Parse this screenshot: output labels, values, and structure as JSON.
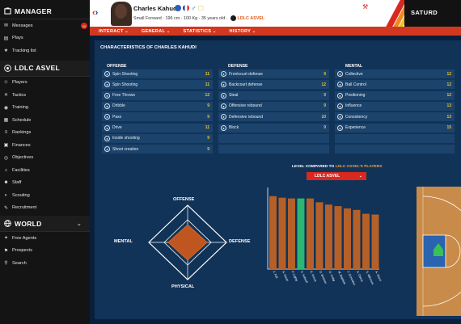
{
  "sidebar": {
    "manager_title": "MANAGER",
    "messages_badge": "45",
    "items_top": [
      {
        "label": "Messages",
        "icon": "envelope-icon"
      },
      {
        "label": "Plays",
        "icon": "clipboard-icon"
      },
      {
        "label": "Tracking list",
        "icon": "star-icon"
      }
    ],
    "club_title": "LDLC ASVEL",
    "items_club": [
      {
        "label": "Players",
        "icon": "players-icon"
      },
      {
        "label": "Tactics",
        "icon": "tactics-icon"
      },
      {
        "label": "Training",
        "icon": "training-icon"
      },
      {
        "label": "Schedule",
        "icon": "calendar-icon"
      },
      {
        "label": "Rankings",
        "icon": "rankings-icon"
      },
      {
        "label": "Finances",
        "icon": "finances-icon"
      },
      {
        "label": "Objectives",
        "icon": "objectives-icon"
      },
      {
        "label": "Facilities",
        "icon": "facilities-icon"
      },
      {
        "label": "Staff",
        "icon": "staff-icon"
      },
      {
        "label": "Scouting",
        "icon": "scouting-icon"
      },
      {
        "label": "Recruitment",
        "icon": "recruitment-icon"
      }
    ],
    "world_title": "WORLD",
    "items_world": [
      {
        "label": "Free Agents",
        "icon": "free-agents-icon"
      },
      {
        "label": "Prospects",
        "icon": "prospects-icon"
      },
      {
        "label": "Search",
        "icon": "search-icon"
      }
    ]
  },
  "header": {
    "player_name": "Charles Kahudi",
    "player_info": "Small Forward · 196 cm · 100 Kg · 35 years old ·",
    "club_name": "LDLC ASVEL",
    "date_label": "SATURD"
  },
  "tabs": [
    {
      "label": "INTERACT"
    },
    {
      "label": "GENERAL"
    },
    {
      "label": "STATISTICS"
    },
    {
      "label": "HISTORY"
    }
  ],
  "panel": {
    "title": "CHARACTERISTICS OF CHARLES KAHUDI",
    "offense_header": "OFFENSE",
    "defense_header": "DEFENSE",
    "mental_header": "MENTAL",
    "offense": [
      {
        "label": "Spin Shooting",
        "value": "11"
      },
      {
        "label": "Spin Shooting",
        "value": "11"
      },
      {
        "label": "Free Throws",
        "value": "12"
      },
      {
        "label": "Dribble",
        "value": "9"
      },
      {
        "label": "Pass",
        "value": "9"
      },
      {
        "label": "Drive",
        "value": "11"
      },
      {
        "label": "Inside shooting",
        "value": "9"
      },
      {
        "label": "Shoot creation",
        "value": "9"
      }
    ],
    "defense": [
      {
        "label": "Frontcourt defense",
        "value": "9"
      },
      {
        "label": "Backcourt defense",
        "value": "12"
      },
      {
        "label": "Steal",
        "value": "9"
      },
      {
        "label": "Offensive rebound",
        "value": "9"
      },
      {
        "label": "Defensive rebound",
        "value": "10"
      },
      {
        "label": "Block",
        "value": "9"
      }
    ],
    "mental": [
      {
        "label": "Collective",
        "value": "12"
      },
      {
        "label": "Ball Control",
        "value": "12"
      },
      {
        "label": "Positioning",
        "value": "12"
      },
      {
        "label": "Influence",
        "value": "13"
      },
      {
        "label": "Consistency",
        "value": "13"
      },
      {
        "label": "Experience",
        "value": "15"
      }
    ]
  },
  "radar": {
    "offense": "OFFENSE",
    "mental": "MENTAL",
    "defense": "DEFENSE",
    "physical": "PHYSICAL"
  },
  "compare": {
    "label_prefix": "LEVEL COMPARED TO",
    "label_club": "LDLC ASVEL'S PLAYERS",
    "dropdown_value": "LDLC ASVEL"
  },
  "chart_data": {
    "type": "bar",
    "categories": [
      "J. Fall",
      "A. Kauto",
      "P. Lighty",
      "C. Kahudi",
      "E. Noura",
      "D. Berleau",
      "G. Colby",
      "M. Baptiste",
      "J. Gonzalez",
      "A. Diarra",
      "S. Mikvicek",
      "A. Shvor"
    ],
    "values": [
      95,
      93,
      92,
      92,
      92,
      87,
      84,
      82,
      79,
      77,
      72,
      71
    ],
    "highlight_index": 3,
    "ylim": [
      0,
      100
    ],
    "colors": {
      "bar": "#b56028",
      "highlight": "#2bb673"
    }
  },
  "colors": {
    "accent_red": "#d9281f",
    "orange": "#e25b1e",
    "attr_value": "#f2c230",
    "panel_bg": "#123358",
    "row_bg": "#1b436b"
  }
}
